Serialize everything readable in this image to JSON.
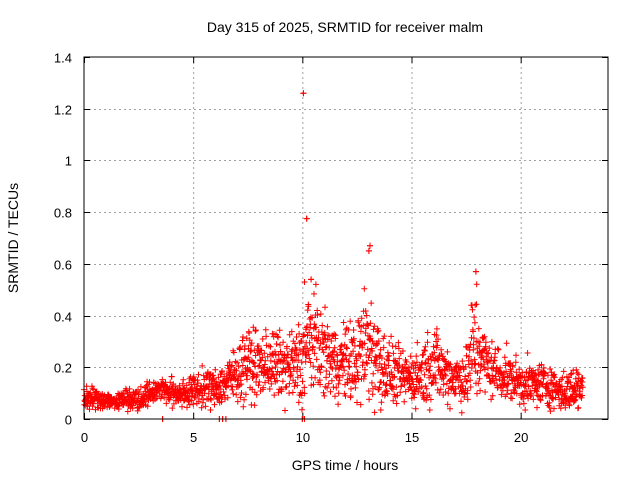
{
  "chart_data": {
    "type": "scatter",
    "title": "Day 315 of 2025, SRMTID for receiver malm",
    "xlabel": "GPS time / hours",
    "ylabel": "SRMTID / TECUs",
    "xlim": [
      0,
      24
    ],
    "ylim": [
      0,
      1.4
    ],
    "xticks": [
      0,
      5,
      10,
      15,
      20
    ],
    "yticks": [
      0,
      0.2,
      0.4,
      0.6,
      0.8,
      1,
      1.2,
      1.4
    ],
    "grid": true,
    "marker": "+",
    "colors": {
      "series": "#ff0000",
      "grid": "#a0a0a0",
      "axes": "#000000"
    },
    "series": [
      {
        "name": "SRMTID",
        "profile_hours": [
          0,
          0.5,
          1,
          1.5,
          2,
          2.5,
          3,
          3.5,
          4,
          4.5,
          5,
          5.5,
          6,
          6.5,
          7,
          7.5,
          8,
          8.5,
          9,
          9.5,
          10,
          10.25,
          10.5,
          11,
          11.5,
          12,
          12.5,
          13,
          13.5,
          14,
          14.5,
          15,
          15.5,
          16,
          16.5,
          17,
          17.5,
          17.9,
          18.2,
          18.5,
          19,
          19.5,
          20,
          20.5,
          21,
          21.5,
          22,
          22.5,
          22.8
        ],
        "profile_median": [
          0.09,
          0.08,
          0.07,
          0.07,
          0.08,
          0.08,
          0.1,
          0.12,
          0.1,
          0.1,
          0.11,
          0.12,
          0.12,
          0.14,
          0.18,
          0.22,
          0.2,
          0.22,
          0.2,
          0.2,
          0.22,
          0.3,
          0.3,
          0.25,
          0.22,
          0.22,
          0.22,
          0.3,
          0.22,
          0.18,
          0.16,
          0.16,
          0.18,
          0.22,
          0.18,
          0.16,
          0.16,
          0.3,
          0.25,
          0.2,
          0.18,
          0.16,
          0.14,
          0.13,
          0.14,
          0.12,
          0.1,
          0.12,
          0.12
        ],
        "profile_spread": [
          0.03,
          0.03,
          0.02,
          0.02,
          0.03,
          0.03,
          0.03,
          0.03,
          0.04,
          0.04,
          0.04,
          0.05,
          0.05,
          0.06,
          0.08,
          0.09,
          0.09,
          0.09,
          0.09,
          0.1,
          0.12,
          0.15,
          0.14,
          0.1,
          0.1,
          0.1,
          0.12,
          0.18,
          0.14,
          0.08,
          0.07,
          0.07,
          0.09,
          0.1,
          0.08,
          0.07,
          0.08,
          0.2,
          0.1,
          0.08,
          0.07,
          0.06,
          0.06,
          0.06,
          0.06,
          0.05,
          0.05,
          0.06,
          0.05
        ],
        "sample_interval_hours": 0.012,
        "x_end": 22.85,
        "notable_points": [
          {
            "x": 10.05,
            "y": 1.26
          },
          {
            "x": 10.2,
            "y": 0.775
          },
          {
            "x": 13.1,
            "y": 0.67
          },
          {
            "x": 13.05,
            "y": 0.65
          },
          {
            "x": 17.95,
            "y": 0.57
          },
          {
            "x": 10.4,
            "y": 0.54
          },
          {
            "x": 10.1,
            "y": 0.53
          },
          {
            "x": 3.6,
            "y": 0.0
          },
          {
            "x": 6.2,
            "y": 0.0
          },
          {
            "x": 6.35,
            "y": 0.0
          },
          {
            "x": 6.5,
            "y": 0.0
          },
          {
            "x": 10.0,
            "y": 0.0
          },
          {
            "x": 10.1,
            "y": 0.0
          }
        ]
      }
    ]
  }
}
